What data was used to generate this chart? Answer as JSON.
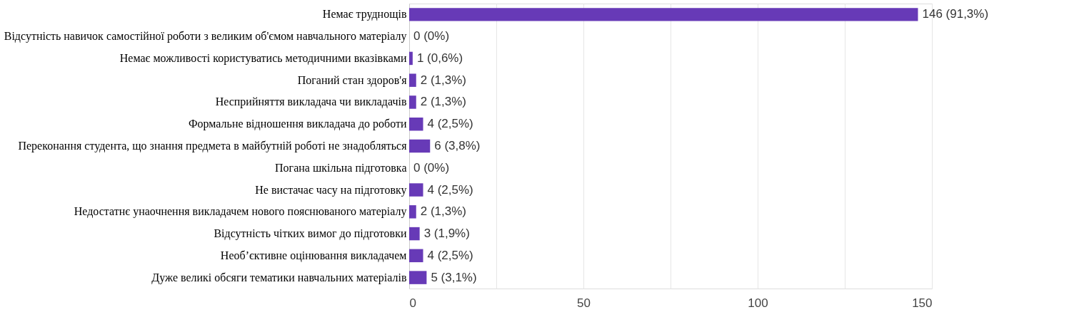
{
  "chart_data": {
    "type": "bar",
    "orientation": "horizontal",
    "categories": [
      "Немає труднощів",
      "Відсутність навичок самостійної роботи з великим об'ємом навчального матеріалу",
      "Немає можливості користуватись методичними вказівками",
      "Поганий стан здоров'я",
      "Несприйняття викладача чи викладачів",
      "Формальне відношення викладача до роботи",
      "Переконання студента, що знання предмета в майбутній роботі не знадобляться",
      "Погана шкільна підготовка",
      "Не вистачає часу на підготовку",
      "Недостатнє унаочнення викладачем нового пояснюваного матеріалу",
      "Відсутність чітких вимог до підготовки",
      "Необ’єктивне оцінювання викладачем",
      "Дуже великі обсяги тематики навчальних матеріалів"
    ],
    "values": [
      146,
      0,
      1,
      2,
      2,
      4,
      6,
      0,
      4,
      2,
      3,
      4,
      5
    ],
    "value_labels": [
      "146 (91,3%)",
      "0 (0%)",
      "1 (0,6%)",
      "2 (1,3%)",
      "2 (1,3%)",
      "4 (2,5%)",
      "6 (3,8%)",
      "0 (0%)",
      "4 (2,5%)",
      "2 (1,3%)",
      "3 (1,9%)",
      "4 (2,5%)",
      "5 (3,1%)"
    ],
    "color": "#673ab7",
    "xlim": [
      0,
      150
    ],
    "xticks": [
      0,
      {
        "value": 25,
        "label": null
      },
      50,
      {
        "value": 75,
        "label": null
      },
      100,
      {
        "value": 125,
        "label": null
      },
      150
    ],
    "grid": true
  }
}
